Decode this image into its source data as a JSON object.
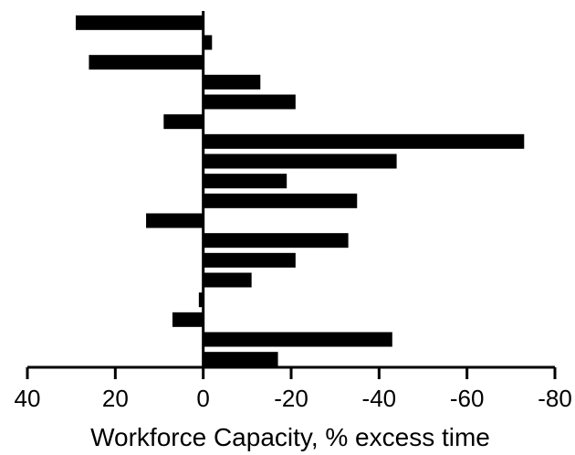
{
  "chart_data": {
    "type": "bar",
    "orientation": "horizontal",
    "title": "",
    "xlabel": "Workforce Capacity, % excess time",
    "ylabel": "",
    "x_axis_reversed": true,
    "xlim": [
      40,
      -80
    ],
    "xticks": [
      40,
      20,
      0,
      -20,
      -40,
      -60,
      -80
    ],
    "xtick_labels": [
      "40",
      "20",
      "0",
      "-20",
      "-40",
      "-60",
      "-80"
    ],
    "grid": false,
    "bar_color": "#000000",
    "values": [
      29,
      -2,
      26,
      -13,
      -21,
      9,
      -73,
      -44,
      -19,
      -35,
      13,
      -33,
      -21,
      -11,
      1,
      7,
      -43,
      -17
    ]
  }
}
